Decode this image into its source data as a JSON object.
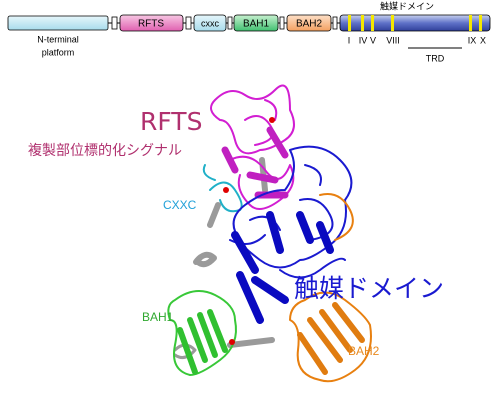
{
  "domain_map": {
    "segments": [
      "RFTS",
      "cxxc",
      "BAH1",
      "BAH2"
    ],
    "catalytic_label": "触媒ドメイン",
    "n_terminal_label": [
      "N-terminal",
      "platform"
    ],
    "motifs": [
      "I",
      "IV",
      "V",
      "VIII",
      "IX",
      "X"
    ],
    "trd_label": "TRD"
  },
  "structure": {
    "labels": [
      "RFTS",
      "複製部位標的化シグナル",
      "CXXC",
      "BAH1",
      "BAH2",
      "触媒ドメイン"
    ]
  }
}
